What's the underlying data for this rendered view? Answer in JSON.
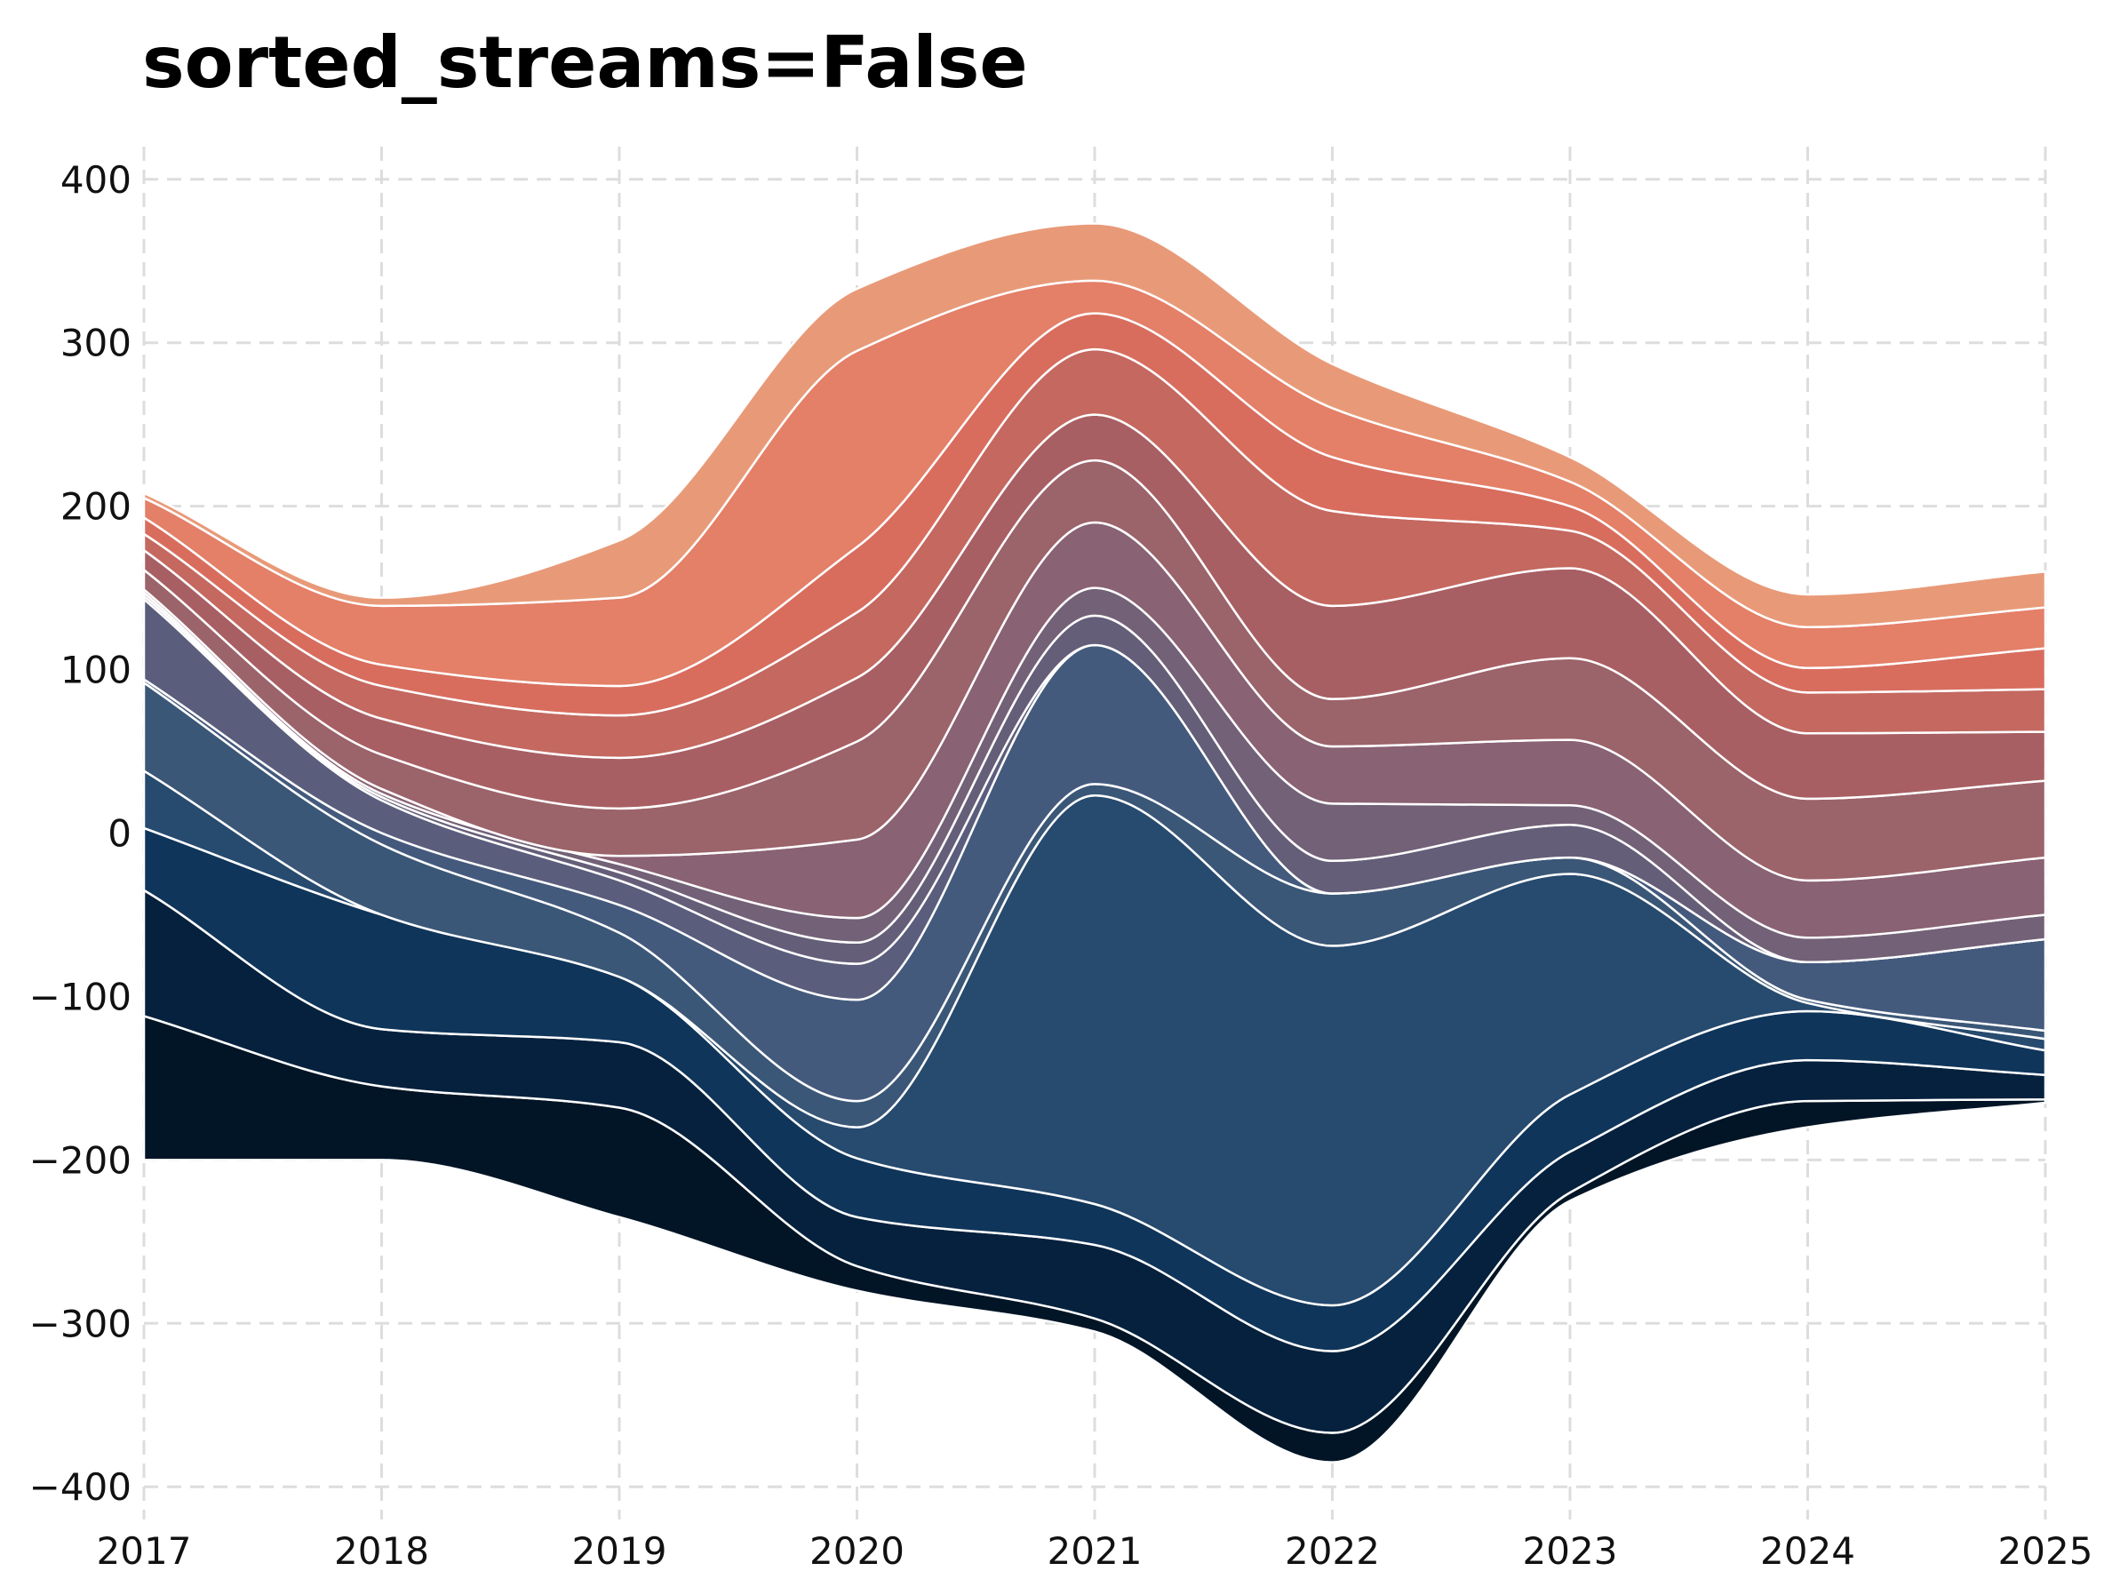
{
  "chart_data": {
    "type": "area",
    "title": "sorted_streams=False",
    "xlabel": "",
    "ylabel": "",
    "x": [
      2017,
      2018,
      2019,
      2020,
      2021,
      2022,
      2023,
      2024,
      2025
    ],
    "xlim": [
      2017,
      2025
    ],
    "ylim": [
      -420,
      420
    ],
    "x_ticks": [
      "2017",
      "2018",
      "2019",
      "2020",
      "2021",
      "2022",
      "2023",
      "2024",
      "2025"
    ],
    "y_ticks": [
      {
        "value": 400,
        "label": "400"
      },
      {
        "value": 300,
        "label": "300"
      },
      {
        "value": 200,
        "label": "200"
      },
      {
        "value": 100,
        "label": "100"
      },
      {
        "value": 0,
        "label": "0"
      },
      {
        "value": -100,
        "label": "−100"
      },
      {
        "value": -200,
        "label": "−200"
      },
      {
        "value": -300,
        "label": "−300"
      },
      {
        "value": -400,
        "label": "−400"
      }
    ],
    "grid": true,
    "legend": "none",
    "baseline": [
      -200,
      -200,
      -235,
      -280,
      -305,
      -385,
      -225,
      -180,
      -165
    ],
    "series": [
      {
        "color": "#021526",
        "values": [
          88,
          45,
          67,
          15,
          8,
          18,
          5,
          16,
          2
        ]
      },
      {
        "color": "#06213d",
        "values": [
          77,
          35,
          40,
          30,
          45,
          50,
          25,
          25,
          15
        ]
      },
      {
        "color": "#10355a",
        "values": [
          38,
          70,
          40,
          36,
          25,
          28,
          35,
          30,
          15
        ]
      },
      {
        "color": "#274a6f",
        "values": [
          35,
          0,
          0,
          19,
          250,
          220,
          135,
          5,
          7
        ]
      },
      {
        "color": "#3b5777",
        "values": [
          54,
          43,
          27,
          16,
          7,
          32,
          10,
          2,
          5
        ]
      },
      {
        "color": "#445a7d",
        "values": [
          2,
          7,
          17,
          62,
          85,
          0,
          0,
          23,
          56
        ]
      },
      {
        "color": "#5a5d7c",
        "values": [
          49,
          20,
          15,
          22,
          0,
          0,
          0,
          0,
          0
        ]
      },
      {
        "color": "#655e79",
        "values": [
          2,
          2,
          5,
          13,
          18,
          20,
          20,
          0,
          0
        ]
      },
      {
        "color": "#736178",
        "values": [
          2,
          2,
          5,
          15,
          17,
          35,
          12,
          15,
          15
        ]
      },
      {
        "color": "#896273",
        "values": [
          2,
          3,
          5,
          48,
          40,
          35,
          40,
          35,
          35
        ]
      },
      {
        "color": "#9b636a",
        "values": [
          12,
          21,
          29,
          60,
          38,
          29,
          50,
          50,
          47
        ]
      },
      {
        "color": "#a85f63",
        "values": [
          12,
          22,
          31,
          39,
          28,
          57,
          55,
          40,
          30
        ]
      },
      {
        "color": "#c46860",
        "values": [
          10,
          20,
          26,
          40,
          40,
          58,
          23,
          25,
          26
        ]
      },
      {
        "color": "#d86d5e",
        "values": [
          10,
          13,
          18,
          40,
          22,
          33,
          15,
          15,
          25
        ]
      },
      {
        "color": "#e47f68",
        "values": [
          12,
          36,
          54,
          120,
          20,
          30,
          15,
          25,
          25
        ]
      },
      {
        "color": "#e89a78",
        "values": [
          3,
          5,
          35,
          38,
          35,
          27,
          15,
          20,
          22
        ]
      }
    ]
  }
}
